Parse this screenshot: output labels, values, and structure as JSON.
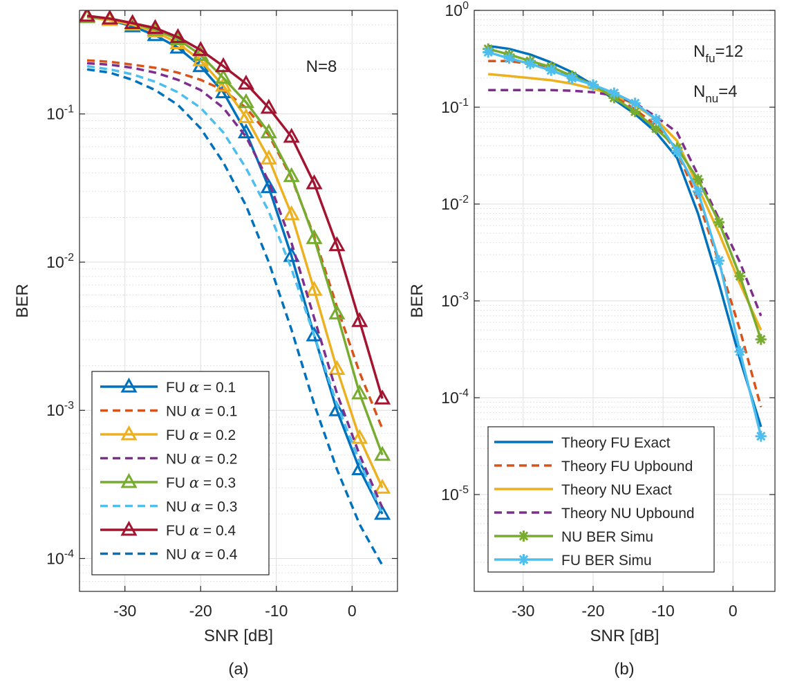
{
  "chart_data": [
    {
      "type": "line",
      "panel_caption": "(a)",
      "annotation": "N=8",
      "xlabel": "SNR [dB]",
      "ylabel": "BER",
      "x_scale": "linear",
      "y_scale": "log",
      "xlim": [
        -36,
        6
      ],
      "ylim": [
        6e-05,
        0.5
      ],
      "xticks": [
        -30,
        -20,
        -10,
        0
      ],
      "xtick_labels": [
        "-30",
        "-20",
        "-10",
        "0"
      ],
      "yticks": [
        0.0001,
        0.001,
        0.01,
        0.1
      ],
      "ytick_labels": [
        {
          "base": "10",
          "exp": "-4"
        },
        {
          "base": "10",
          "exp": "-3"
        },
        {
          "base": "10",
          "exp": "-2"
        },
        {
          "base": "10",
          "exp": "-1"
        }
      ],
      "grid": true,
      "legend_position": "bottom-left",
      "series": [
        {
          "label": "FU",
          "alpha_value": "= 0.1",
          "color": "#0072BD",
          "dash": "solid",
          "marker": "triangle",
          "x": [
            -35,
            -32,
            -29,
            -26,
            -23,
            -20,
            -17,
            -14,
            -11,
            -8,
            -5,
            -2,
            1,
            4
          ],
          "y": [
            0.45,
            0.43,
            0.39,
            0.34,
            0.28,
            0.21,
            0.14,
            0.075,
            0.032,
            0.011,
            0.0032,
            0.001,
            0.0004,
            0.0002
          ]
        },
        {
          "label": "NU",
          "alpha_value": "= 0.1",
          "color": "#D95319",
          "dash": "dashed",
          "marker": "none",
          "x": [
            -35,
            -32,
            -29,
            -26,
            -23,
            -20,
            -17,
            -14,
            -11,
            -8,
            -5,
            -2,
            1,
            4
          ],
          "y": [
            0.23,
            0.225,
            0.215,
            0.205,
            0.19,
            0.17,
            0.145,
            0.11,
            0.072,
            0.037,
            0.015,
            0.005,
            0.0018,
            0.00075
          ]
        },
        {
          "label": "FU",
          "alpha_value": "= 0.2",
          "color": "#EDB120",
          "dash": "solid",
          "marker": "triangle",
          "x": [
            -35,
            -32,
            -29,
            -26,
            -23,
            -20,
            -17,
            -14,
            -11,
            -8,
            -5,
            -2,
            1,
            4
          ],
          "y": [
            0.45,
            0.43,
            0.4,
            0.36,
            0.3,
            0.23,
            0.155,
            0.095,
            0.05,
            0.021,
            0.0065,
            0.0019,
            0.00065,
            0.0003
          ]
        },
        {
          "label": "NU",
          "alpha_value": "= 0.2",
          "color": "#7E2F8E",
          "dash": "dashed",
          "marker": "none",
          "x": [
            -35,
            -32,
            -29,
            -26,
            -23,
            -20,
            -17,
            -14,
            -11,
            -8,
            -5,
            -2,
            1,
            4
          ],
          "y": [
            0.22,
            0.215,
            0.205,
            0.19,
            0.17,
            0.145,
            0.11,
            0.07,
            0.035,
            0.0135,
            0.0042,
            0.0013,
            0.0005,
            0.00022
          ]
        },
        {
          "label": "FU",
          "alpha_value": "= 0.3",
          "color": "#77AC30",
          "dash": "solid",
          "marker": "triangle",
          "x": [
            -35,
            -32,
            -29,
            -26,
            -23,
            -20,
            -17,
            -14,
            -11,
            -8,
            -5,
            -2,
            1,
            4
          ],
          "y": [
            0.45,
            0.44,
            0.41,
            0.37,
            0.32,
            0.25,
            0.175,
            0.12,
            0.075,
            0.038,
            0.0145,
            0.0045,
            0.0013,
            0.0005
          ]
        },
        {
          "label": "NU",
          "alpha_value": "= 0.3",
          "color": "#4DBEEE",
          "dash": "dashed",
          "marker": "none",
          "x": [
            -35,
            -32,
            -29,
            -26,
            -23,
            -20,
            -17,
            -14,
            -11,
            -8,
            -5,
            -2,
            1,
            4
          ],
          "y": [
            0.21,
            0.2,
            0.185,
            0.165,
            0.14,
            0.11,
            0.075,
            0.043,
            0.022,
            0.009,
            0.0032,
            0.0011,
            0.00045,
            0.0002
          ]
        },
        {
          "label": "FU",
          "alpha_value": "= 0.4",
          "color": "#A2142F",
          "dash": "solid",
          "marker": "triangle",
          "x": [
            -35,
            -32,
            -29,
            -26,
            -23,
            -20,
            -17,
            -14,
            -11,
            -8,
            -5,
            -2,
            1,
            4
          ],
          "y": [
            0.46,
            0.44,
            0.41,
            0.38,
            0.33,
            0.27,
            0.21,
            0.16,
            0.11,
            0.07,
            0.034,
            0.013,
            0.004,
            0.0012
          ]
        },
        {
          "label": "NU",
          "alpha_value": "= 0.4",
          "color": "#0072BD",
          "dash": "dashed",
          "marker": "none",
          "x": [
            -35,
            -32,
            -29,
            -26,
            -23,
            -20,
            -17,
            -14,
            -11,
            -8,
            -5,
            -2,
            1,
            4
          ],
          "y": [
            0.2,
            0.19,
            0.17,
            0.145,
            0.115,
            0.08,
            0.047,
            0.024,
            0.01,
            0.0035,
            0.0011,
            0.0004,
            0.00017,
            9e-05
          ]
        }
      ]
    },
    {
      "type": "line",
      "panel_caption": "(b)",
      "annotations": [
        {
          "base": "N",
          "sub": "fu",
          "value": "=12"
        },
        {
          "base": "N",
          "sub": "nu",
          "value": "=4"
        }
      ],
      "xlabel": "SNR [dB]",
      "ylabel": "BER",
      "x_scale": "linear",
      "y_scale": "log",
      "xlim": [
        -37,
        6
      ],
      "ylim": [
        1e-06,
        1
      ],
      "xticks": [
        -30,
        -20,
        -10,
        0
      ],
      "xtick_labels": [
        "-30",
        "-20",
        "-10",
        "0"
      ],
      "yticks": [
        1e-05,
        0.0001,
        0.001,
        0.01,
        0.1,
        1
      ],
      "ytick_labels": [
        {
          "base": "10",
          "exp": "-5"
        },
        {
          "base": "10",
          "exp": "-4"
        },
        {
          "base": "10",
          "exp": "-3"
        },
        {
          "base": "10",
          "exp": "-2"
        },
        {
          "base": "10",
          "exp": "-1"
        },
        {
          "base": "10",
          "exp": "0"
        }
      ],
      "grid": true,
      "legend_position": "bottom-left",
      "series": [
        {
          "name": "Theory FU Exact",
          "color": "#0072BD",
          "dash": "solid",
          "marker": "none",
          "x": [
            -35,
            -32,
            -29,
            -26,
            -23,
            -20,
            -17,
            -14,
            -11,
            -8,
            -5,
            -2,
            1,
            4
          ],
          "y": [
            0.43,
            0.4,
            0.35,
            0.29,
            0.23,
            0.17,
            0.12,
            0.085,
            0.055,
            0.03,
            0.008,
            0.0015,
            0.00025,
            5e-05
          ]
        },
        {
          "name": "Theory FU Upbound",
          "color": "#D95319",
          "dash": "dashed",
          "marker": "none",
          "x": [
            -35,
            -32,
            -29,
            -26,
            -23,
            -20,
            -17,
            -14,
            -11,
            -8,
            -5,
            -2,
            1,
            4
          ],
          "y": [
            0.3,
            0.3,
            0.28,
            0.25,
            0.21,
            0.17,
            0.13,
            0.095,
            0.065,
            0.035,
            0.011,
            0.0025,
            0.0005,
            8e-05
          ]
        },
        {
          "name": "Theory NU Exact",
          "color": "#EDB120",
          "dash": "solid",
          "marker": "none",
          "x": [
            -35,
            -32,
            -29,
            -26,
            -23,
            -20,
            -17,
            -14,
            -11,
            -8,
            -5,
            -2,
            1,
            4
          ],
          "y": [
            0.22,
            0.21,
            0.2,
            0.19,
            0.175,
            0.155,
            0.135,
            0.105,
            0.075,
            0.045,
            0.015,
            0.005,
            0.0015,
            0.0005
          ]
        },
        {
          "name": "Theory NU Upbound",
          "color": "#7E2F8E",
          "dash": "dashed",
          "marker": "none",
          "x": [
            -35,
            -32,
            -29,
            -26,
            -23,
            -20,
            -17,
            -14,
            -11,
            -8,
            -5,
            -2,
            1,
            4
          ],
          "y": [
            0.15,
            0.15,
            0.15,
            0.15,
            0.148,
            0.143,
            0.132,
            0.11,
            0.08,
            0.055,
            0.02,
            0.007,
            0.0025,
            0.0007
          ]
        },
        {
          "name": "NU BER Simu",
          "color": "#77AC30",
          "dash": "solid",
          "marker": "asterisk",
          "x": [
            -35,
            -32,
            -29,
            -26,
            -23,
            -20,
            -17,
            -14,
            -11,
            -8,
            -5,
            -2,
            1,
            4
          ],
          "y": [
            0.4,
            0.35,
            0.3,
            0.26,
            0.21,
            0.17,
            0.125,
            0.09,
            0.06,
            0.038,
            0.018,
            0.0065,
            0.0018,
            0.0004
          ]
        },
        {
          "name": "FU BER Simu",
          "color": "#4DBEEE",
          "dash": "solid",
          "marker": "asterisk",
          "x": [
            -35,
            -32,
            -29,
            -26,
            -23,
            -20,
            -17,
            -14,
            -11,
            -8,
            -5,
            -2,
            1,
            4
          ],
          "y": [
            0.37,
            0.32,
            0.28,
            0.24,
            0.2,
            0.17,
            0.14,
            0.11,
            0.075,
            0.035,
            0.0135,
            0.0026,
            0.0003,
            4e-05
          ]
        }
      ]
    }
  ]
}
